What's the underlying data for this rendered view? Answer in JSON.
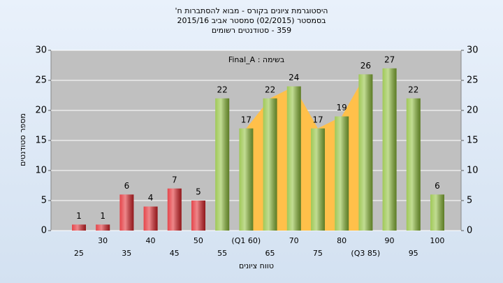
{
  "chart_data": {
    "type": "bar",
    "title": [
      "היסטוגרמת ציונים בקורס - מבוא להסתברות ח'",
      "בסמסטר  (02/2015)  סמסטר אביב 2015/16",
      "359 - סטודנטים רשומים"
    ],
    "annotation": "בשימה : Final_A",
    "x_label": "טווח ציונים",
    "y_label": "מספר סטודנטים",
    "categories": [
      "25",
      "30",
      "35",
      "40",
      "45",
      "50",
      "55",
      "(Q1 60)",
      "65",
      "70",
      "75",
      "80",
      "(Q3 85)",
      "90",
      "95",
      "100"
    ],
    "values": [
      1,
      1,
      6,
      4,
      7,
      5,
      22,
      17,
      22,
      24,
      17,
      19,
      26,
      27,
      22,
      6
    ],
    "colors": [
      "#e0242a",
      "#e0242a",
      "#e0242a",
      "#e0242a",
      "#e0242a",
      "#e0242a",
      "#8fbf3a",
      "#8fbf3a",
      "#8fbf3a",
      "#8fbf3a",
      "#8fbf3a",
      "#8fbf3a",
      "#8fbf3a",
      "#8fbf3a",
      "#8fbf3a",
      "#8fbf3a"
    ],
    "area_color": "#ffc04a",
    "ylim": [
      0,
      30
    ],
    "yticks": [
      0,
      5,
      10,
      15,
      20,
      25,
      30
    ],
    "y2lim": [
      0,
      30
    ],
    "y2ticks": [
      0,
      5,
      10,
      15,
      20,
      25,
      30
    ],
    "grid": true
  }
}
